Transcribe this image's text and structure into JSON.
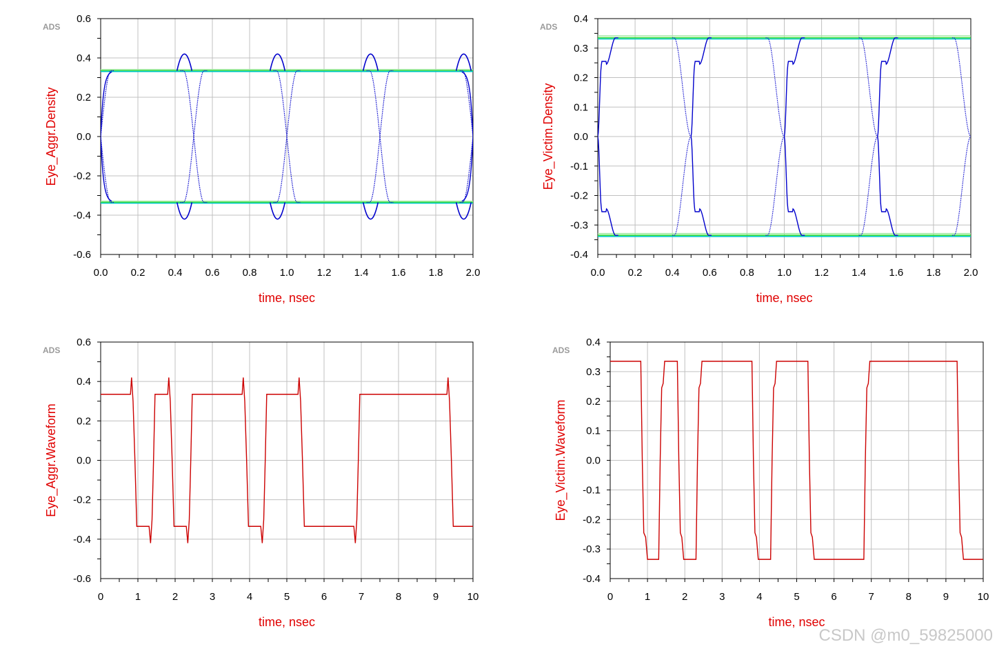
{
  "watermark": "CSDN @m0_59825000",
  "ads_tag": "ADS",
  "colors": {
    "grid": "#c0c0c0",
    "frame": "#000000",
    "axis_title": "#e00000",
    "waveform": "#cc0000",
    "eye_trace_dark": "#0000cc",
    "eye_trace_mid": "#1e90ff",
    "eye_trace_cyan": "#00c8c8",
    "eye_trace_green": "#33dd33",
    "eye_trace_light": "#a0e8a0"
  },
  "chart_data": [
    {
      "id": "aggr-density",
      "type": "line",
      "xlabel": "time, nsec",
      "ylabel": "Eye_Aggr.Density",
      "xlim": [
        0,
        2
      ],
      "ylim": [
        -0.6,
        0.6
      ],
      "x_ticks": [
        "0.0",
        "0.2",
        "0.4",
        "0.6",
        "0.8",
        "1.0",
        "1.2",
        "1.4",
        "1.6",
        "1.8",
        "2.0"
      ],
      "y_ticks": [
        "-0.6",
        "-0.4",
        "-0.2",
        "0.0",
        "0.2",
        "0.4",
        "0.6"
      ],
      "grid": true,
      "levels": {
        "high": 0.335,
        "low": -0.335,
        "overshoot": 0.42
      },
      "crossings": [
        0.0,
        0.5,
        1.0,
        1.5,
        2.0
      ],
      "overshoot_at": [
        0.45,
        0.95,
        1.45,
        1.95
      ]
    },
    {
      "id": "victim-density",
      "type": "line",
      "xlabel": "time, nsec",
      "ylabel": "Eye_Victim.Density",
      "xlim": [
        0,
        2
      ],
      "ylim": [
        -0.4,
        0.4
      ],
      "x_ticks": [
        "0.0",
        "0.2",
        "0.4",
        "0.6",
        "0.8",
        "1.0",
        "1.2",
        "1.4",
        "1.6",
        "1.8",
        "2.0"
      ],
      "y_ticks": [
        "-0.4",
        "-0.3",
        "-0.2",
        "-0.1",
        "0.0",
        "0.1",
        "0.2",
        "0.3",
        "0.4"
      ],
      "grid": true,
      "levels": {
        "high": 0.335,
        "low": -0.335,
        "step": 0.245
      },
      "crossings": [
        0.0,
        0.5,
        1.0,
        1.5,
        2.0
      ]
    },
    {
      "id": "aggr-waveform",
      "type": "line",
      "xlabel": "time, nsec",
      "ylabel": "Eye_Aggr.Waveform",
      "xlim": [
        0,
        10
      ],
      "ylim": [
        -0.6,
        0.6
      ],
      "x_ticks": [
        "0",
        "1",
        "2",
        "3",
        "4",
        "5",
        "6",
        "7",
        "8",
        "9",
        "10"
      ],
      "y_ticks": [
        "-0.6",
        "-0.4",
        "-0.2",
        "0.0",
        "0.2",
        "0.4",
        "0.6"
      ],
      "grid": true,
      "x": [
        0,
        0.8,
        0.83,
        0.87,
        0.92,
        0.97,
        1.3,
        1.34,
        1.38,
        1.42,
        1.46,
        1.8,
        1.83,
        1.87,
        1.92,
        1.97,
        2.3,
        2.34,
        2.38,
        2.42,
        2.46,
        3.8,
        3.83,
        3.87,
        3.92,
        3.97,
        4.3,
        4.34,
        4.38,
        4.42,
        4.46,
        5.3,
        5.33,
        5.37,
        5.42,
        5.47,
        6.8,
        6.84,
        6.88,
        6.92,
        6.96,
        9.3,
        9.33,
        9.37,
        9.42,
        9.47,
        10
      ],
      "y": [
        0.335,
        0.335,
        0.42,
        0.3,
        0.0,
        -0.335,
        -0.335,
        -0.42,
        -0.3,
        0.0,
        0.335,
        0.335,
        0.42,
        0.3,
        0.0,
        -0.335,
        -0.335,
        -0.42,
        -0.3,
        0.0,
        0.335,
        0.335,
        0.42,
        0.3,
        0.0,
        -0.335,
        -0.335,
        -0.42,
        -0.3,
        0.0,
        0.335,
        0.335,
        0.42,
        0.3,
        0.0,
        -0.335,
        -0.335,
        -0.42,
        -0.3,
        0.0,
        0.335,
        0.335,
        0.42,
        0.3,
        0.0,
        -0.335,
        -0.335
      ]
    },
    {
      "id": "victim-waveform",
      "type": "line",
      "xlabel": "time, nsec",
      "ylabel": "Eye_Victim.Waveform",
      "xlim": [
        0,
        10
      ],
      "ylim": [
        -0.4,
        0.4
      ],
      "x_ticks": [
        "0",
        "1",
        "2",
        "3",
        "4",
        "5",
        "6",
        "7",
        "8",
        "9",
        "10"
      ],
      "y_ticks": [
        "-0.4",
        "-0.3",
        "-0.2",
        "-0.1",
        "0.0",
        "0.1",
        "0.2",
        "0.3",
        "0.4"
      ],
      "grid": true,
      "x": [
        0,
        0.82,
        0.86,
        0.9,
        0.95,
        1.0,
        1.3,
        1.34,
        1.38,
        1.42,
        1.46,
        1.5,
        1.8,
        1.84,
        1.88,
        1.92,
        1.97,
        2.0,
        2.3,
        2.34,
        2.38,
        2.42,
        2.46,
        2.5,
        3.8,
        3.84,
        3.88,
        3.92,
        3.97,
        4.0,
        4.3,
        4.34,
        4.38,
        4.42,
        4.46,
        4.5,
        5.3,
        5.34,
        5.38,
        5.42,
        5.47,
        5.5,
        6.0,
        6.8,
        6.84,
        6.88,
        6.92,
        6.96,
        7.0,
        9.3,
        9.34,
        9.38,
        9.42,
        9.47,
        9.5,
        10
      ],
      "y": [
        0.335,
        0.335,
        0.0,
        -0.245,
        -0.26,
        -0.335,
        -0.335,
        0.0,
        0.245,
        0.26,
        0.335,
        0.335,
        0.335,
        0.0,
        -0.245,
        -0.26,
        -0.335,
        -0.335,
        -0.335,
        0.0,
        0.245,
        0.26,
        0.335,
        0.335,
        0.335,
        0.0,
        -0.245,
        -0.26,
        -0.335,
        -0.335,
        -0.335,
        0.0,
        0.245,
        0.26,
        0.335,
        0.335,
        0.335,
        0.0,
        -0.245,
        -0.26,
        -0.335,
        -0.335,
        -0.335,
        -0.335,
        0.0,
        0.245,
        0.26,
        0.335,
        0.335,
        0.335,
        0.0,
        -0.245,
        -0.26,
        -0.335,
        -0.335,
        -0.335
      ]
    }
  ]
}
